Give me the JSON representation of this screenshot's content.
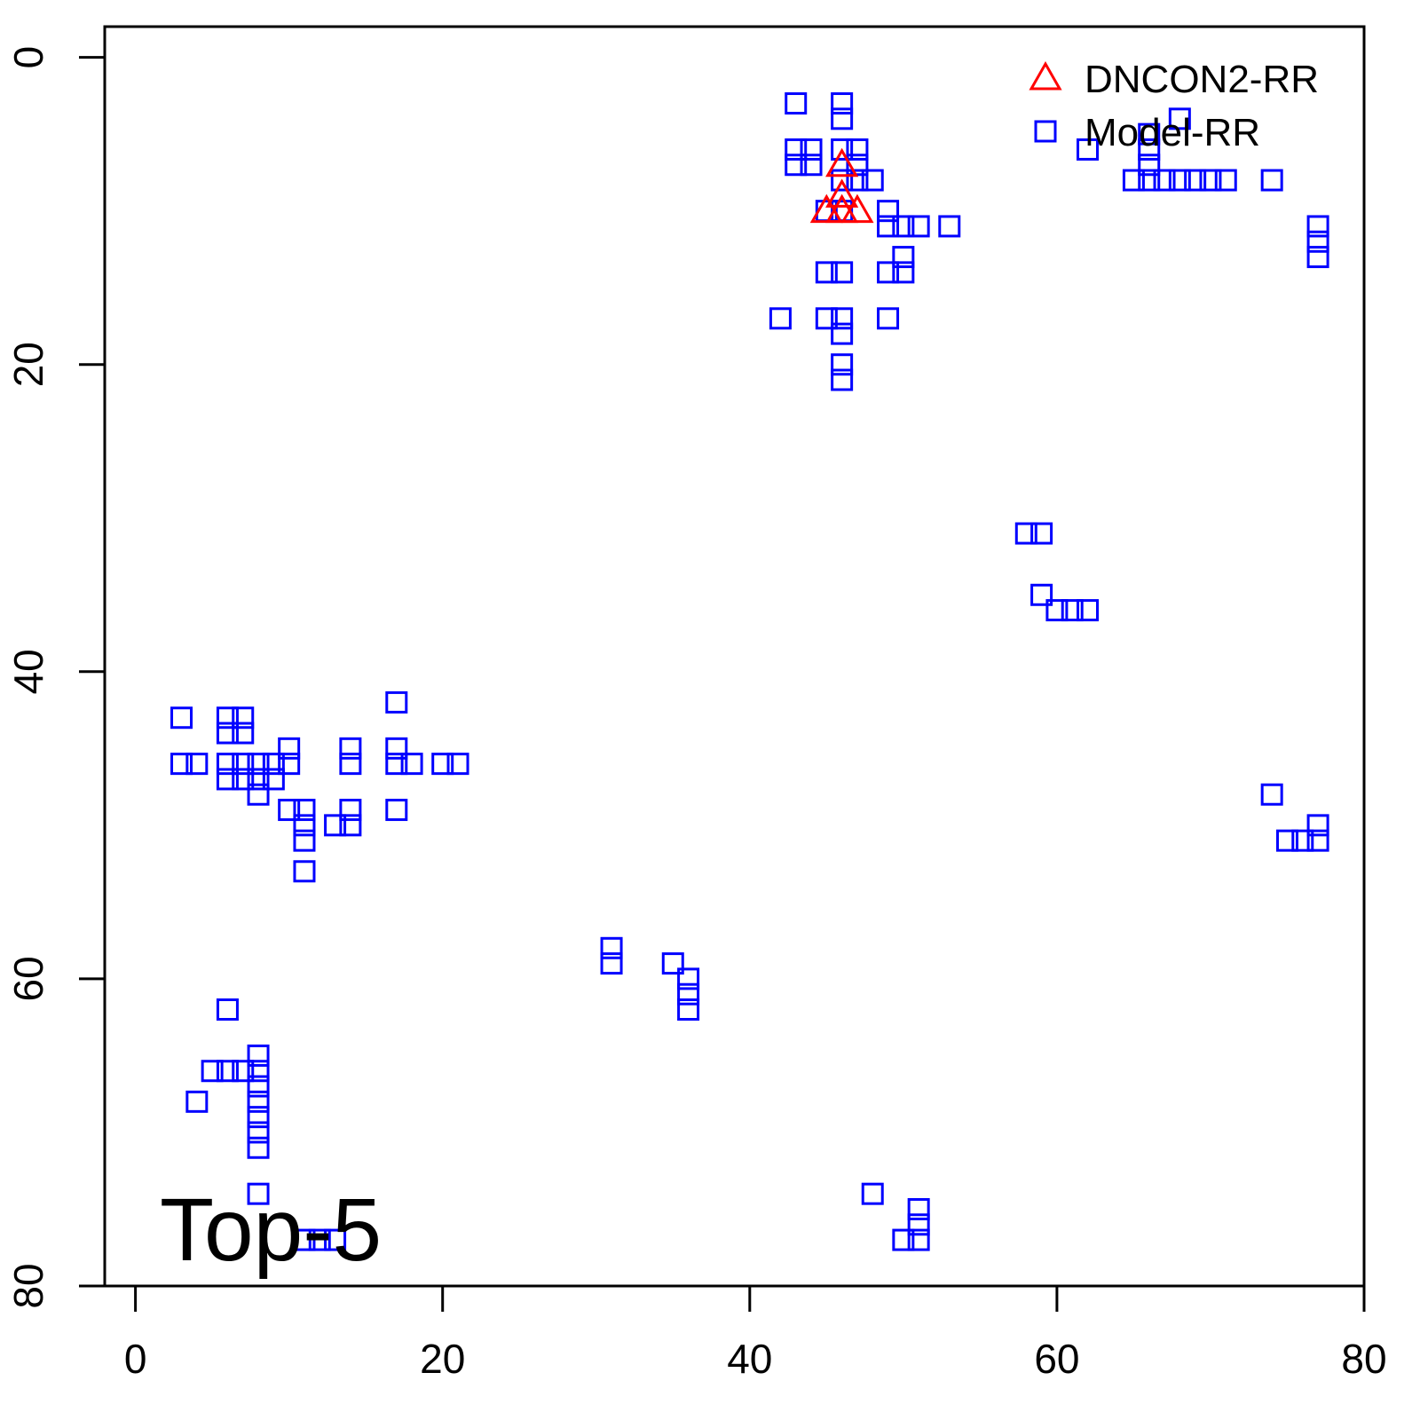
{
  "chart_data": {
    "type": "scatter",
    "annotation": "Top-5",
    "xlim": [
      -2,
      80
    ],
    "ylim": [
      -2,
      80
    ],
    "y_reversed": true,
    "xticks": [
      0,
      20,
      40,
      60,
      80
    ],
    "yticks": [
      0,
      20,
      40,
      60,
      80
    ],
    "legend": "top-right",
    "series": [
      {
        "name": "DNCON2-RR",
        "color": "#ff0000",
        "marker": "triangle",
        "x": [
          46,
          46,
          45,
          46,
          47
        ],
        "values": [
          7,
          9,
          10,
          10,
          10
        ]
      },
      {
        "name": "Model-RR",
        "color": "#0000ff",
        "marker": "square",
        "x": [
          43,
          46,
          46,
          43,
          44,
          43,
          44,
          46,
          47,
          47,
          47,
          48,
          46,
          45,
          46,
          49,
          49,
          50,
          51,
          53,
          50,
          50,
          49,
          45,
          46,
          42,
          45,
          46,
          46,
          49,
          46,
          46,
          62,
          66,
          66,
          66,
          66,
          68,
          65,
          67,
          68,
          69,
          70,
          71,
          74,
          77,
          77,
          77,
          58,
          59,
          59,
          60,
          61,
          62,
          74,
          77,
          75,
          76,
          77,
          3,
          6,
          7,
          6,
          7,
          17,
          3,
          4,
          6,
          7,
          8,
          9,
          10,
          14,
          17,
          18,
          20,
          21,
          6,
          7,
          8,
          9,
          8,
          10,
          14,
          17,
          10,
          11,
          14,
          17,
          11,
          11,
          13,
          14,
          11,
          31,
          31,
          35,
          36,
          36,
          36,
          6,
          5,
          6,
          7,
          8,
          8,
          8,
          8,
          8,
          8,
          8,
          4,
          8,
          11,
          12,
          13,
          48,
          51,
          51,
          51,
          50
        ],
        "values": [
          3,
          3,
          4,
          6,
          6,
          7,
          7,
          6,
          6,
          7,
          8,
          8,
          8,
          10,
          10,
          10,
          11,
          11,
          11,
          11,
          13,
          14,
          14,
          14,
          14,
          17,
          17,
          17,
          18,
          17,
          20,
          21,
          6,
          5,
          6,
          7,
          8,
          4,
          8,
          8,
          8,
          8,
          8,
          8,
          8,
          11,
          12,
          13,
          31,
          31,
          35,
          36,
          36,
          36,
          48,
          50,
          51,
          51,
          51,
          43,
          43,
          43,
          44,
          44,
          42,
          46,
          46,
          46,
          46,
          46,
          46,
          46,
          46,
          46,
          46,
          46,
          46,
          47,
          47,
          47,
          47,
          48,
          45,
          45,
          45,
          49,
          49,
          49,
          49,
          50,
          51,
          50,
          50,
          53,
          58,
          59,
          59,
          60,
          61,
          62,
          62,
          66,
          66,
          66,
          66,
          65,
          67,
          68,
          69,
          70,
          71,
          68,
          74,
          77,
          77,
          77,
          74,
          75,
          76,
          77,
          77
        ]
      }
    ]
  }
}
